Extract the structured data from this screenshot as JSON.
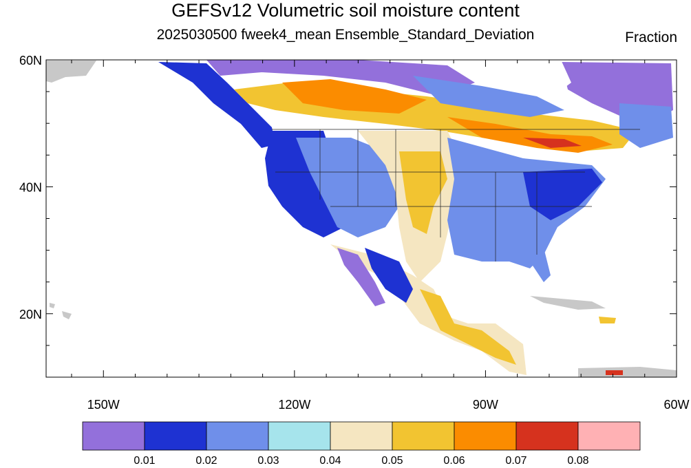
{
  "header": {
    "title": "GEFSv12 Volumetric soil moisture content",
    "subtitle": "2025030500 fweek4_mean Ensemble_Standard_Deviation",
    "units": "Fraction"
  },
  "map": {
    "projection": "cylindrical equidistant",
    "lon_range": [
      -159,
      -60
    ],
    "lat_range": [
      10,
      60
    ],
    "lat_ticks": [
      {
        "value": 60,
        "label": "60N"
      },
      {
        "value": 40,
        "label": "40N"
      },
      {
        "value": 20,
        "label": "20N"
      }
    ],
    "lon_ticks": [
      {
        "value": -150,
        "label": "150W"
      },
      {
        "value": -120,
        "label": "120W"
      },
      {
        "value": -90,
        "label": "90W"
      },
      {
        "value": -60,
        "label": "60W"
      }
    ],
    "field": "Volumetric soil moisture content ensemble standard deviation",
    "missing_color": "#c8c8c8"
  },
  "colorbar": {
    "colors": [
      "#9370db",
      "#1e32d2",
      "#6f8fea",
      "#a6e4ec",
      "#f5e6c1",
      "#f2c431",
      "#fb8c00",
      "#d6321e",
      "#ffb1b4"
    ],
    "boundaries": [
      "0.01",
      "0.02",
      "0.03",
      "0.04",
      "0.05",
      "0.06",
      "0.07",
      "0.08"
    ]
  }
}
